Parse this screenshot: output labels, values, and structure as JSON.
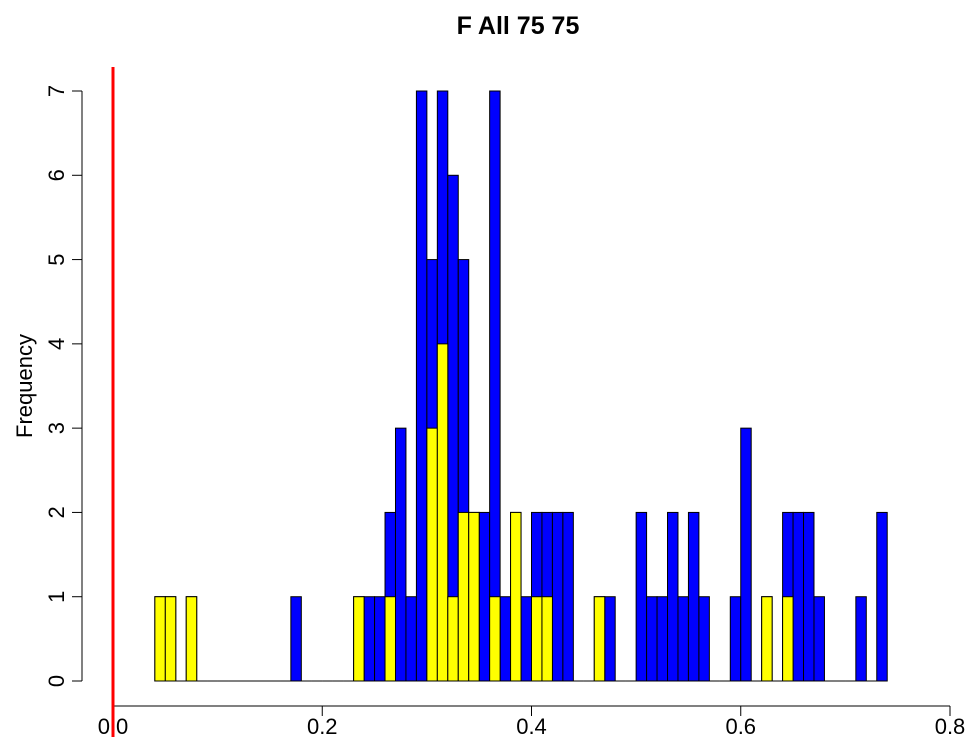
{
  "chart_data": {
    "type": "histogram",
    "title": "F All 75 75",
    "y_label": "Frequency",
    "bins": [
      0.04,
      0.05,
      0.06,
      0.07,
      0.08,
      0.09,
      0.1,
      0.11,
      0.12,
      0.13,
      0.14,
      0.15,
      0.16,
      0.17,
      0.18,
      0.19,
      0.2,
      0.21,
      0.22,
      0.23,
      0.24,
      0.25,
      0.26,
      0.27,
      0.28,
      0.29,
      0.3,
      0.31,
      0.32,
      0.33,
      0.34,
      0.35,
      0.36,
      0.37,
      0.38,
      0.39,
      0.4,
      0.41,
      0.42,
      0.43,
      0.44,
      0.45,
      0.46,
      0.47,
      0.48,
      0.49,
      0.5,
      0.51,
      0.52,
      0.53,
      0.54,
      0.55,
      0.56,
      0.57,
      0.58,
      0.59,
      0.6,
      0.61,
      0.62,
      0.63,
      0.64,
      0.65,
      0.66,
      0.67,
      0.68,
      0.69,
      0.7,
      0.71,
      0.72,
      0.73,
      0.74
    ],
    "series": [
      {
        "color": "#0000ff",
        "values": [
          1,
          1,
          0,
          1,
          0,
          0,
          0,
          0,
          0,
          0,
          0,
          0,
          0,
          1,
          0,
          0,
          0,
          0,
          0,
          1,
          1,
          1,
          2,
          3,
          1,
          7,
          5,
          7,
          6,
          5,
          2,
          2,
          7,
          1,
          2,
          1,
          2,
          2,
          2,
          2,
          0,
          0,
          1,
          1,
          0,
          0,
          2,
          1,
          1,
          2,
          1,
          2,
          1,
          0,
          0,
          1,
          3,
          0,
          1,
          0,
          2,
          2,
          2,
          1,
          0,
          0,
          0,
          1,
          0,
          2
        ]
      },
      {
        "color": "#ffff00",
        "values": [
          1,
          1,
          0,
          1,
          0,
          0,
          0,
          0,
          0,
          0,
          0,
          0,
          0,
          0,
          0,
          0,
          0,
          0,
          0,
          1,
          0,
          0,
          1,
          0,
          0,
          0,
          3,
          4,
          1,
          2,
          2,
          0,
          1,
          0,
          2,
          0,
          1,
          1,
          0,
          0,
          0,
          0,
          1,
          0,
          0,
          0,
          0,
          0,
          0,
          0,
          0,
          0,
          0,
          0,
          0,
          0,
          0,
          0,
          1,
          0,
          1,
          0,
          0,
          0,
          0,
          0,
          0,
          0,
          0,
          0
        ]
      }
    ],
    "vline": {
      "value": 0,
      "color": "#ff0000"
    },
    "xlim": [
      0,
      0.8
    ],
    "xticks": [
      {
        "value": 0,
        "label": "0.0"
      },
      0.2,
      0.4,
      0.6,
      0.8
    ],
    "ylim": [
      0,
      7
    ],
    "yticks": [
      0,
      1,
      2,
      3,
      4,
      5,
      6,
      7
    ]
  }
}
